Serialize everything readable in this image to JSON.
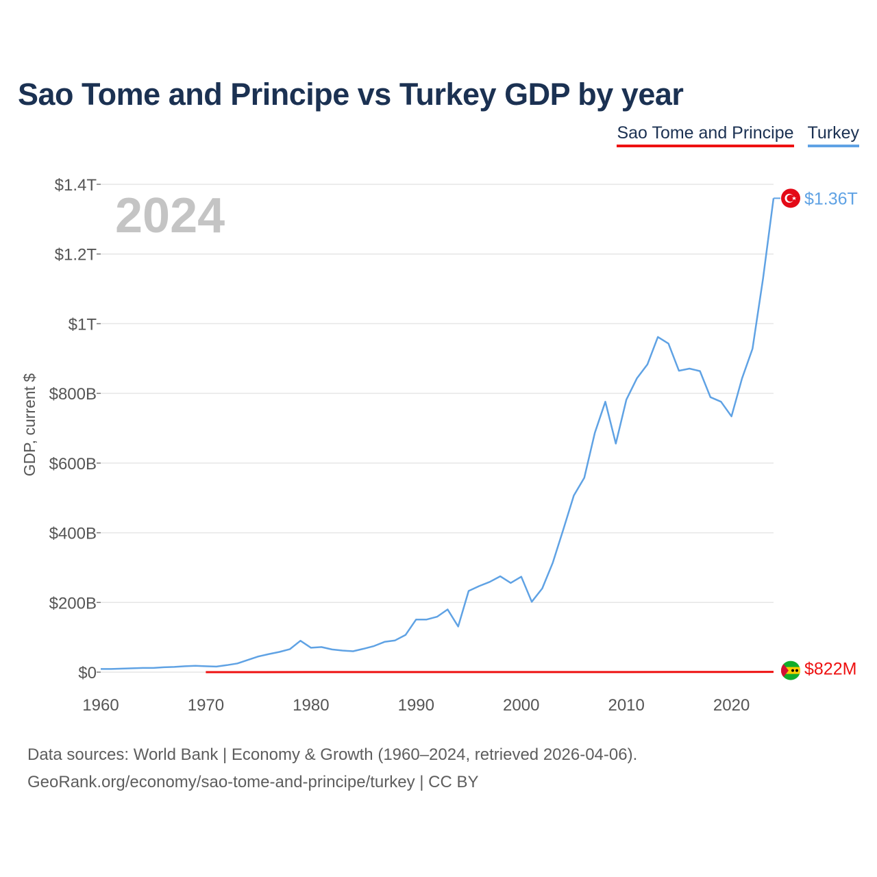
{
  "title": "Sao Tome and Principe vs Turkey GDP by year",
  "legend": {
    "stp": "Sao Tome and Principe",
    "tur": "Turkey"
  },
  "year_label": "2024",
  "footer": {
    "line1": "Data sources: World Bank | Economy & Growth (1960–2024, retrieved 2026-04-06).",
    "line2": "GeoRank.org/economy/sao-tome-and-principe/turkey | CC BY"
  },
  "colors": {
    "stp": "#ee1111",
    "tur": "#5fa2e4",
    "grid": "#e6e6e6",
    "axis_text": "#555555"
  },
  "chart_data": {
    "type": "line",
    "title": "Sao Tome and Principe vs Turkey GDP by year",
    "xlabel": "",
    "ylabel": "GDP, current $",
    "xlim": [
      1960,
      2024
    ],
    "ylim": [
      0,
      1.4
    ],
    "y_unit": "trillions of current US$",
    "y_ticks": [
      {
        "value": 0,
        "label": "$0"
      },
      {
        "value": 0.2,
        "label": "$200B"
      },
      {
        "value": 0.4,
        "label": "$400B"
      },
      {
        "value": 0.6,
        "label": "$600B"
      },
      {
        "value": 0.8,
        "label": "$800B"
      },
      {
        "value": 1.0,
        "label": "$1T"
      },
      {
        "value": 1.2,
        "label": "$1.2T"
      },
      {
        "value": 1.4,
        "label": "$1.4T"
      }
    ],
    "x_ticks": [
      1960,
      1970,
      1980,
      1990,
      2000,
      2010,
      2020
    ],
    "series": [
      {
        "name": "Turkey",
        "color": "#5fa2e4",
        "end_label": "$1.36T",
        "flag": "turkey-flag-icon",
        "points": [
          [
            1960,
            0.009
          ],
          [
            1961,
            0.009
          ],
          [
            1962,
            0.01
          ],
          [
            1963,
            0.011
          ],
          [
            1964,
            0.012
          ],
          [
            1965,
            0.012
          ],
          [
            1966,
            0.014
          ],
          [
            1967,
            0.015
          ],
          [
            1968,
            0.017
          ],
          [
            1969,
            0.018
          ],
          [
            1970,
            0.017
          ],
          [
            1971,
            0.016
          ],
          [
            1972,
            0.02
          ],
          [
            1973,
            0.025
          ],
          [
            1974,
            0.035
          ],
          [
            1975,
            0.045
          ],
          [
            1976,
            0.052
          ],
          [
            1977,
            0.058
          ],
          [
            1978,
            0.066
          ],
          [
            1979,
            0.09
          ],
          [
            1980,
            0.07
          ],
          [
            1981,
            0.072
          ],
          [
            1982,
            0.065
          ],
          [
            1983,
            0.062
          ],
          [
            1984,
            0.06
          ],
          [
            1985,
            0.067
          ],
          [
            1986,
            0.075
          ],
          [
            1987,
            0.087
          ],
          [
            1988,
            0.091
          ],
          [
            1989,
            0.107
          ],
          [
            1990,
            0.151
          ],
          [
            1991,
            0.151
          ],
          [
            1992,
            0.159
          ],
          [
            1993,
            0.18
          ],
          [
            1994,
            0.131
          ],
          [
            1995,
            0.233
          ],
          [
            1996,
            0.247
          ],
          [
            1997,
            0.259
          ],
          [
            1998,
            0.275
          ],
          [
            1999,
            0.256
          ],
          [
            2000,
            0.274
          ],
          [
            2001,
            0.202
          ],
          [
            2002,
            0.24
          ],
          [
            2003,
            0.314
          ],
          [
            2004,
            0.409
          ],
          [
            2005,
            0.507
          ],
          [
            2006,
            0.558
          ],
          [
            2007,
            0.687
          ],
          [
            2008,
            0.776
          ],
          [
            2009,
            0.656
          ],
          [
            2010,
            0.782
          ],
          [
            2011,
            0.843
          ],
          [
            2012,
            0.883
          ],
          [
            2013,
            0.962
          ],
          [
            2014,
            0.943
          ],
          [
            2015,
            0.865
          ],
          [
            2016,
            0.871
          ],
          [
            2017,
            0.864
          ],
          [
            2018,
            0.789
          ],
          [
            2019,
            0.776
          ],
          [
            2020,
            0.734
          ],
          [
            2021,
            0.843
          ],
          [
            2022,
            0.928
          ],
          [
            2023,
            1.13
          ],
          [
            2024,
            1.36
          ]
        ]
      },
      {
        "name": "Sao Tome and Principe",
        "color": "#ee1111",
        "end_label": "$822M",
        "flag": "sao-tome-flag-icon",
        "points": [
          [
            1970,
            0.0
          ],
          [
            1980,
            0.0001
          ],
          [
            1990,
            0.0001
          ],
          [
            2000,
            0.0001
          ],
          [
            2010,
            0.0002
          ],
          [
            2015,
            0.0003
          ],
          [
            2020,
            0.0005
          ],
          [
            2024,
            0.00082
          ]
        ]
      }
    ]
  }
}
